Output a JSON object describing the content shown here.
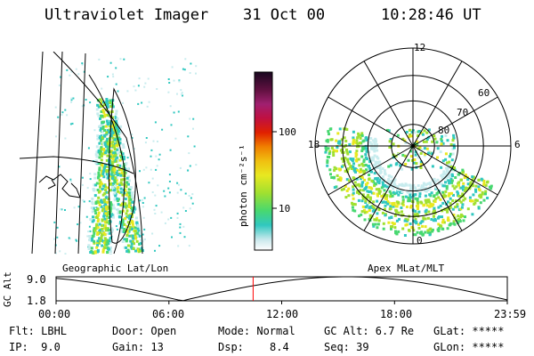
{
  "header": {
    "instrument": "Ultraviolet Imager",
    "date": "31 Oct 00",
    "time": "10:28:46 UT"
  },
  "colorbar": {
    "label": "photon cm⁻²s⁻¹",
    "ticks": [
      "100",
      "10"
    ],
    "scale": "log"
  },
  "polar_plot": {
    "mlt_labels": [
      "12",
      "6",
      "0",
      "18"
    ],
    "mlat_labels": [
      "60",
      "70",
      "80"
    ],
    "title": "Apex MLat/MLT"
  },
  "geo_plot": {
    "title": "Geographic Lat/Lon"
  },
  "altitude_plot": {
    "ylabel": "GC Alt",
    "yticks": [
      "9.0",
      "1.8"
    ],
    "xticks": [
      "00:00",
      "06:00",
      "12:00",
      "18:00",
      "23:59"
    ],
    "current_marker_hour": 10.48,
    "marker_color": "#ff0000"
  },
  "footer": {
    "filter": "Flt: LBHL",
    "ip": "IP:  9.0",
    "door": "Door: Open",
    "gain": "Gain: 13",
    "mode": "Mode: Normal",
    "dsp_label": "Dsp:",
    "dsp_value": "8.4",
    "gc_alt": "GC Alt: 6.7 Re",
    "seq": "Seq: 39",
    "glat": "GLat: *****",
    "glon": "GLon: *****"
  }
}
